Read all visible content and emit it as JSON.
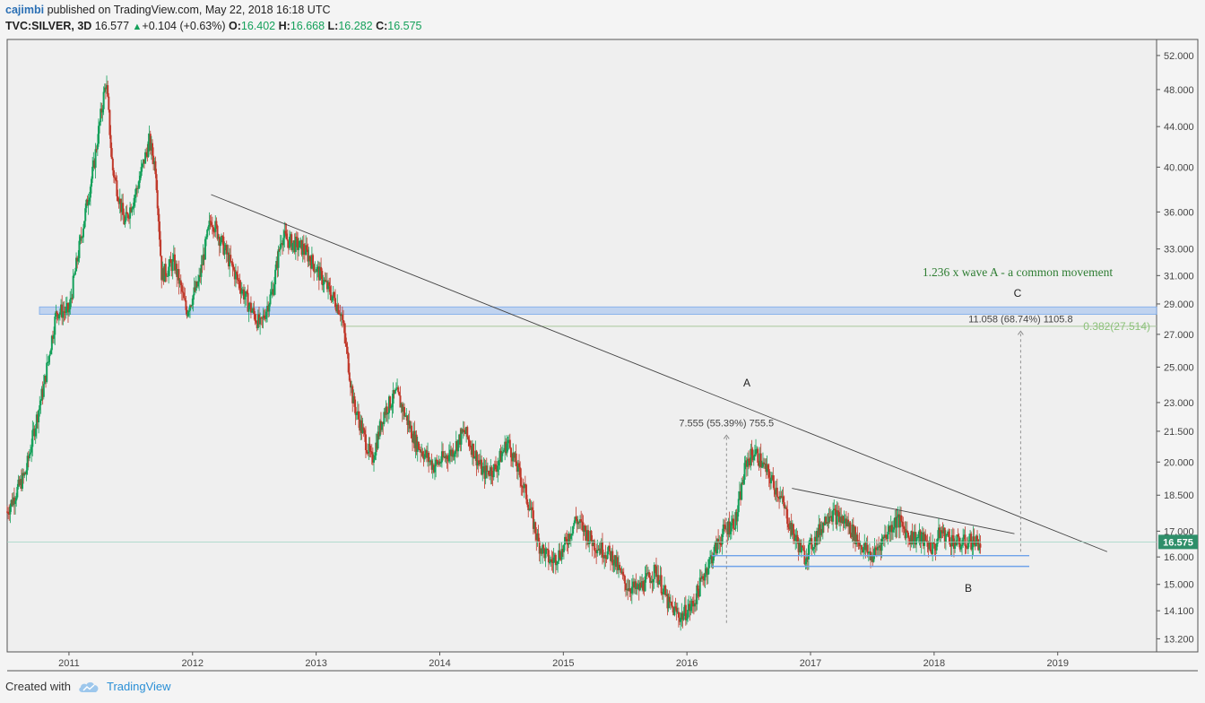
{
  "header": {
    "author": "cajimbi",
    "published_text": "published on TradingView.com, May 22, 2018 16:18 UTC",
    "symbol": "TVC:SILVER, 3D",
    "last": "16.577",
    "change": "+0.104 (+0.63%)",
    "o_label": "O:",
    "o_value": "16.402",
    "h_label": "H:",
    "h_value": "16.668",
    "l_label": "L:",
    "l_value": "16.282",
    "c_label": "C:",
    "c_value": "16.575"
  },
  "footer": {
    "created_with": "Created with",
    "brand": "TradingView"
  },
  "colors": {
    "up": "#14a05a",
    "down": "#c0392b",
    "zone": "#bcd1f0",
    "hline": "#6fa3ea",
    "price_tag": "#2f8f6a"
  },
  "chart_data": {
    "type": "candlestick",
    "symbol": "TVC:SILVER",
    "interval": "3D",
    "scale": "log",
    "ylim": [
      12.8,
      54.0
    ],
    "xlim": [
      2010.5,
      2019.8
    ],
    "x_ticks": [
      "2011",
      "2012",
      "2013",
      "2014",
      "2015",
      "2016",
      "2017",
      "2018",
      "2019"
    ],
    "y_ticks": [
      "52.000",
      "48.000",
      "44.000",
      "40.000",
      "36.000",
      "33.000",
      "31.000",
      "29.000",
      "27.000",
      "25.000",
      "23.000",
      "21.500",
      "20.000",
      "18.500",
      "17.000",
      "16.000",
      "15.000",
      "14.100",
      "13.200"
    ],
    "price_series": [
      [
        2010.5,
        17.8
      ],
      [
        2010.65,
        19.5
      ],
      [
        2010.8,
        24.0
      ],
      [
        2010.9,
        28.5
      ],
      [
        2011.0,
        28.5
      ],
      [
        2011.1,
        34.0
      ],
      [
        2011.2,
        40.0
      ],
      [
        2011.3,
        49.0
      ],
      [
        2011.35,
        40.0
      ],
      [
        2011.45,
        35.0
      ],
      [
        2011.55,
        38.0
      ],
      [
        2011.65,
        42.5
      ],
      [
        2011.7,
        40.0
      ],
      [
        2011.75,
        31.0
      ],
      [
        2011.85,
        32.0
      ],
      [
        2011.95,
        28.5
      ],
      [
        2012.05,
        30.5
      ],
      [
        2012.15,
        35.5
      ],
      [
        2012.3,
        32.0
      ],
      [
        2012.45,
        29.0
      ],
      [
        2012.55,
        27.5
      ],
      [
        2012.65,
        30.0
      ],
      [
        2012.72,
        34.0
      ],
      [
        2012.8,
        33.5
      ],
      [
        2012.9,
        33.0
      ],
      [
        2013.0,
        31.5
      ],
      [
        2013.1,
        30.0
      ],
      [
        2013.2,
        28.5
      ],
      [
        2013.3,
        23.0
      ],
      [
        2013.45,
        20.0
      ],
      [
        2013.55,
        22.5
      ],
      [
        2013.65,
        23.5
      ],
      [
        2013.8,
        21.0
      ],
      [
        2013.95,
        19.8
      ],
      [
        2014.1,
        20.5
      ],
      [
        2014.2,
        21.5
      ],
      [
        2014.35,
        19.5
      ],
      [
        2014.45,
        19.7
      ],
      [
        2014.55,
        21.0
      ],
      [
        2014.7,
        18.5
      ],
      [
        2014.8,
        16.5
      ],
      [
        2014.9,
        15.8
      ],
      [
        2015.0,
        16.3
      ],
      [
        2015.1,
        17.5
      ],
      [
        2015.25,
        16.5
      ],
      [
        2015.4,
        16.0
      ],
      [
        2015.5,
        15.0
      ],
      [
        2015.6,
        14.8
      ],
      [
        2015.75,
        15.5
      ],
      [
        2015.85,
        14.3
      ],
      [
        2015.95,
        13.9
      ],
      [
        2016.05,
        14.3
      ],
      [
        2016.15,
        15.5
      ],
      [
        2016.3,
        17.0
      ],
      [
        2016.4,
        17.5
      ],
      [
        2016.48,
        20.0
      ],
      [
        2016.55,
        20.5
      ],
      [
        2016.65,
        19.5
      ],
      [
        2016.75,
        18.5
      ],
      [
        2016.85,
        17.0
      ],
      [
        2016.95,
        16.0
      ],
      [
        2017.05,
        16.8
      ],
      [
        2017.15,
        17.8
      ],
      [
        2017.3,
        17.3
      ],
      [
        2017.4,
        16.5
      ],
      [
        2017.5,
        16.0
      ],
      [
        2017.6,
        16.8
      ],
      [
        2017.7,
        17.5
      ],
      [
        2017.8,
        16.8
      ],
      [
        2017.9,
        16.7
      ],
      [
        2018.0,
        16.3
      ],
      [
        2018.05,
        17.0
      ],
      [
        2018.1,
        16.8
      ],
      [
        2018.2,
        16.5
      ],
      [
        2018.3,
        16.6
      ],
      [
        2018.38,
        16.55
      ]
    ],
    "last_price": "16.575",
    "trendlines": [
      {
        "name": "long-trendline",
        "points": [
          [
            2012.15,
            37.5
          ],
          [
            2019.4,
            16.2
          ]
        ]
      },
      {
        "name": "triangle-top",
        "points": [
          [
            2016.85,
            18.8
          ],
          [
            2018.65,
            16.9
          ]
        ]
      }
    ],
    "resistance_zone": [
      28.3,
      28.8
    ],
    "support_lines": [
      16.05,
      15.65
    ],
    "fib_level": {
      "price": 27.514,
      "label": "0.382(27.514)"
    },
    "measure_1": {
      "x": 2016.32,
      "from": 13.7,
      "to": 21.3,
      "label": "7.555 (55.39%) 755.5"
    },
    "measure_2": {
      "x": 2018.7,
      "from": 16.2,
      "to": 27.2,
      "label": "11.058 (68.74%) 1105.8"
    },
    "annotations": {
      "A": "A",
      "B": "B",
      "C": "C",
      "note": "1.236 x wave A - a common movement"
    }
  }
}
